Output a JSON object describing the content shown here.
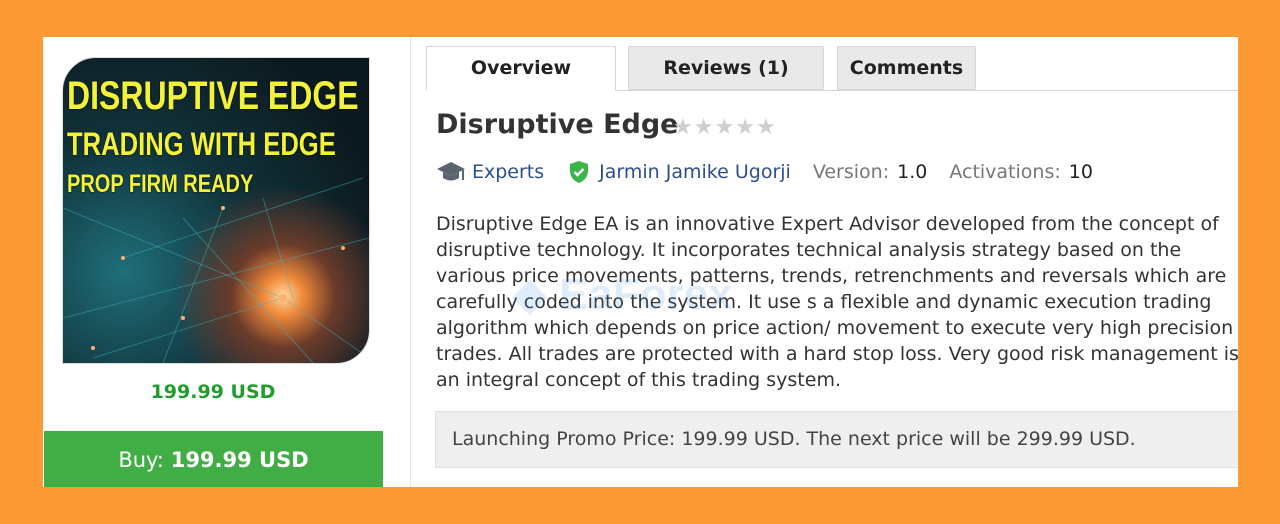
{
  "product": {
    "cover_lines": [
      "DISRUPTIVE EDGE",
      "TRADING WITH EDGE",
      "PROP FIRM READY"
    ],
    "price": "199.99 USD",
    "buy_label": "Buy:",
    "buy_price": "199.99 USD"
  },
  "tabs": [
    {
      "label": "Overview",
      "active": true
    },
    {
      "label": "Reviews (1)",
      "active": false
    },
    {
      "label": "Comments",
      "active": false
    }
  ],
  "overview": {
    "title": "Disruptive Edge",
    "rating": 0,
    "rating_max": 5,
    "category": "Experts",
    "author": "Jarmin Jamike Ugorji",
    "version_label": "Version:",
    "version": "1.0",
    "activations_label": "Activations:",
    "activations": "10",
    "description": "Disruptive Edge EA is an innovative Expert Advisor developed from the concept of disruptive technology. It incorporates technical analysis strategy based on the various price movements, patterns, trends, retrenchments and reversals which are carefully coded into the system. It use s a flexible and dynamic execution trading algorithm which depends on price action/ movement to execute very high precision trades. All trades are protected with a hard stop loss. Very good risk management is an integral concept of this trading system.",
    "promo": "Launching Promo Price: 199.99 USD. The next price will be 299.99 USD."
  },
  "watermark": "EaForex",
  "colors": {
    "background": "#fd9a35",
    "buy": "#41ad45",
    "price": "#1f9e2f",
    "link": "#2c4f8c"
  }
}
